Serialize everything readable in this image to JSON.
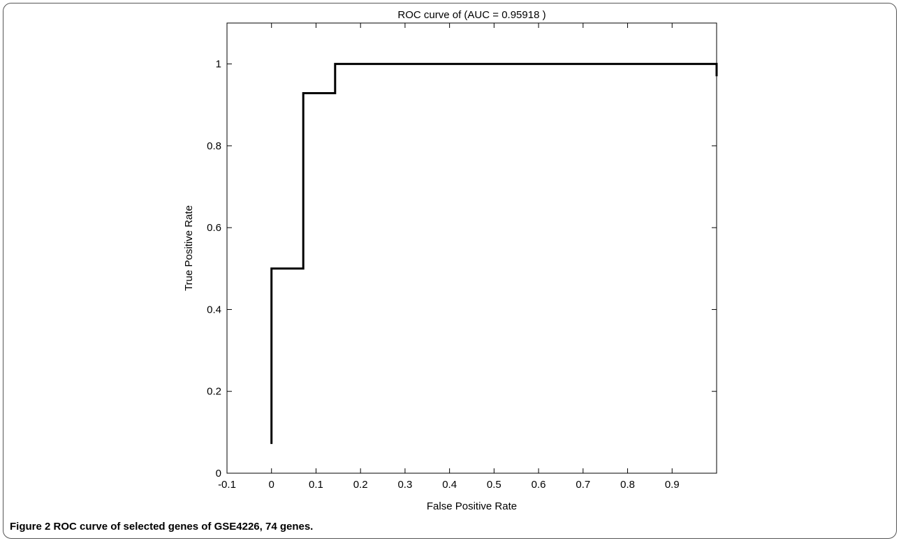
{
  "caption": {
    "label": "Figure 2",
    "text": "ROC curve of selected genes of GSE4226, 74 genes."
  },
  "chart_data": {
    "type": "line",
    "title": "ROC curve of (AUC = 0.95918 )",
    "xlabel": "False Positive Rate",
    "ylabel": "True Positive Rate",
    "xlim": [
      -0.1,
      1.0
    ],
    "ylim": [
      0,
      1.1
    ],
    "x_ticks": [
      -0.1,
      0,
      0.1,
      0.2,
      0.3,
      0.4,
      0.5,
      0.6,
      0.7,
      0.8,
      0.9
    ],
    "x_tick_labels": [
      "-0.1",
      "0",
      "0.1",
      "0.2",
      "0.3",
      "0.4",
      "0.5",
      "0.6",
      "0.7",
      "0.8",
      "0.9"
    ],
    "y_ticks": [
      0,
      0.2,
      0.4,
      0.6,
      0.8,
      1
    ],
    "y_tick_labels": [
      "0",
      "0.2",
      "0.4",
      "0.6",
      "0.8",
      "1"
    ],
    "grid": false,
    "series": [
      {
        "color": "#000000",
        "x": [
          0,
          0,
          0.0714,
          0.0714,
          0.1429,
          0.1429,
          1.0,
          1.0
        ],
        "y": [
          0.0714,
          0.5,
          0.5,
          0.9286,
          0.9286,
          1.0,
          1.0,
          0.97
        ]
      }
    ]
  }
}
